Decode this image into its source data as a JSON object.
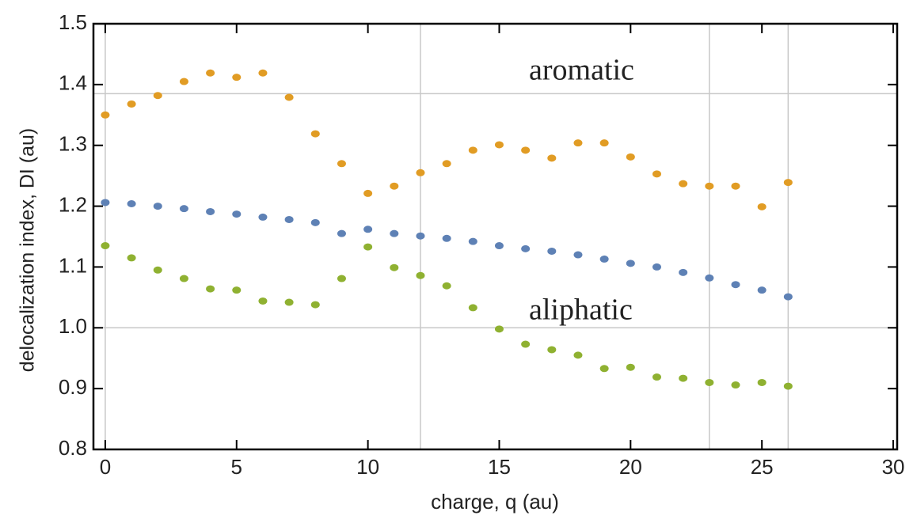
{
  "chart_data": {
    "type": "scatter",
    "x_label": "charge, q (au)",
    "y_label": "delocalization index, DI (au)",
    "annotations": [
      "aromatic",
      "aliphatic"
    ],
    "x": [
      0,
      1,
      2,
      3,
      4,
      5,
      6,
      7,
      8,
      9,
      10,
      11,
      12,
      13,
      14,
      15,
      16,
      17,
      18,
      19,
      20,
      21,
      22,
      23,
      24,
      25,
      26
    ],
    "series": [
      {
        "color": "#e19c24",
        "values": [
          1.35,
          1.368,
          1.382,
          1.405,
          1.419,
          1.412,
          1.419,
          1.379,
          1.319,
          1.27,
          1.221,
          1.233,
          1.255,
          1.27,
          1.292,
          1.301,
          1.292,
          1.279,
          1.304,
          1.304,
          1.281,
          1.253,
          1.237,
          1.233,
          1.233,
          1.199,
          1.239
        ]
      },
      {
        "color": "#5e81b5",
        "values": [
          1.206,
          1.204,
          1.2,
          1.196,
          1.191,
          1.187,
          1.182,
          1.178,
          1.173,
          1.155,
          1.162,
          1.155,
          1.151,
          1.147,
          1.142,
          1.135,
          1.13,
          1.126,
          1.12,
          1.113,
          1.106,
          1.1,
          1.091,
          1.082,
          1.071,
          1.062,
          1.051
        ]
      },
      {
        "color": "#8fb131",
        "values": [
          1.135,
          1.115,
          1.095,
          1.081,
          1.064,
          1.062,
          1.044,
          1.042,
          1.038,
          1.081,
          1.133,
          1.099,
          1.086,
          1.069,
          1.033,
          0.998,
          0.973,
          0.964,
          0.955,
          0.933,
          0.935,
          0.919,
          0.917,
          0.91,
          0.906,
          0.91,
          0.904
        ]
      }
    ],
    "xlim": [
      -0.45,
      30.15
    ],
    "ylim": [
      0.8,
      1.5
    ],
    "xticks": [
      0,
      5,
      10,
      15,
      20,
      25,
      30
    ],
    "yticks": [
      0.8,
      0.9,
      {
        "value": 1,
        "label": "1.0"
      },
      1.1,
      1.2,
      1.3,
      1.4,
      1.5
    ],
    "xgrid": [
      0,
      12,
      23,
      26
    ],
    "ygrid": [
      1.0,
      1.385
    ]
  }
}
